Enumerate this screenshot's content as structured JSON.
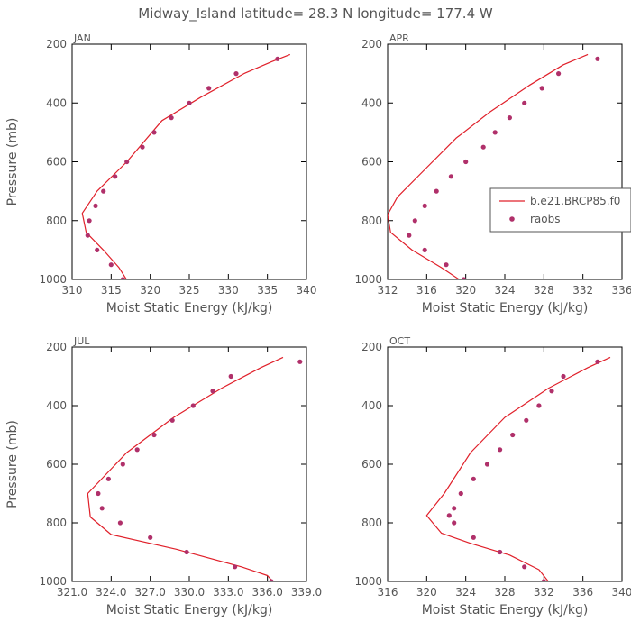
{
  "figure": {
    "title": "Midway_Island  latitude= 28.3 N longitude= 177.4 W"
  },
  "colors": {
    "model": "#e0202a",
    "obs": "#b0306a",
    "axis": "#000000",
    "text": "#555555"
  },
  "legend": {
    "entries": [
      "b.e21.BRCP85.f0",
      "raobs"
    ]
  },
  "chart_data": [
    {
      "type": "line",
      "panel": "JAN",
      "xlabel": "Moist Static Energy (kJ/kg)",
      "ylabel": "Pressure (mb)",
      "xlim": [
        310,
        340
      ],
      "ylim": [
        1000,
        200
      ],
      "xticks": [
        310,
        315,
        320,
        325,
        330,
        335,
        340
      ],
      "xticklabels": [
        "310",
        "315",
        "320",
        "325",
        "330",
        "335",
        "340"
      ],
      "yticks": [
        200,
        400,
        600,
        800,
        1000
      ],
      "series": [
        {
          "name": "b.e21.BRCP85.f0",
          "kind": "line",
          "x": [
            337.9,
            335.5,
            332.0,
            326.5,
            321.5,
            317.0,
            313.2,
            311.3,
            311.8,
            314.0,
            316.0,
            317.2
          ],
          "y": [
            235,
            260,
            300,
            380,
            460,
            600,
            700,
            775,
            840,
            900,
            960,
            1010
          ]
        },
        {
          "name": "raobs",
          "kind": "scatter",
          "x": [
            336.3,
            331.0,
            327.5,
            325.0,
            322.7,
            320.5,
            319.0,
            317.0,
            315.5,
            314.0,
            313.0,
            312.2,
            312.0,
            313.2,
            315.0,
            316.5
          ],
          "y": [
            250,
            300,
            350,
            400,
            450,
            500,
            550,
            600,
            650,
            700,
            750,
            800,
            850,
            900,
            950,
            1000
          ]
        }
      ]
    },
    {
      "type": "line",
      "panel": "APR",
      "xlabel": "Moist Static Energy (kJ/kg)",
      "ylabel": "",
      "xlim": [
        312,
        336
      ],
      "ylim": [
        1000,
        200
      ],
      "xticks": [
        312,
        316,
        320,
        324,
        328,
        332,
        336
      ],
      "xticklabels": [
        "312",
        "316",
        "320",
        "324",
        "328",
        "332",
        "336"
      ],
      "yticks": [
        200,
        400,
        600,
        800,
        1000
      ],
      "series": [
        {
          "name": "b.e21.BRCP85.f0",
          "kind": "line",
          "x": [
            332.5,
            330.0,
            326.5,
            322.5,
            319.0,
            316.0,
            313.0,
            312.0,
            312.3,
            314.5,
            317.5,
            320.0
          ],
          "y": [
            235,
            270,
            340,
            430,
            520,
            620,
            720,
            780,
            840,
            900,
            960,
            1015
          ]
        },
        {
          "name": "raobs",
          "kind": "scatter",
          "x": [
            333.5,
            329.5,
            327.8,
            326.0,
            324.5,
            323.0,
            321.8,
            320.0,
            318.5,
            317.0,
            315.8,
            314.8,
            314.2,
            315.8,
            318.0,
            319.8
          ],
          "y": [
            250,
            300,
            350,
            400,
            450,
            500,
            550,
            600,
            650,
            700,
            750,
            800,
            850,
            900,
            950,
            1000
          ]
        }
      ]
    },
    {
      "type": "line",
      "panel": "JUL",
      "xlabel": "Moist Static Energy (kJ/kg)",
      "ylabel": "Pressure (mb)",
      "xlim": [
        321,
        339
      ],
      "ylim": [
        1000,
        200
      ],
      "xticks": [
        321,
        324,
        327,
        330,
        333,
        336,
        339
      ],
      "xticklabels": [
        "321.0",
        "324.0",
        "327.0",
        "330.0",
        "333.0",
        "336.0",
        "339.0"
      ],
      "yticks": [
        200,
        400,
        600,
        800,
        1000
      ],
      "series": [
        {
          "name": "b.e21.BRCP85.f0",
          "kind": "line",
          "x": [
            337.2,
            335.5,
            332.5,
            328.8,
            325.2,
            322.2,
            322.4,
            324.0,
            329.0,
            334.0,
            336.0,
            336.7
          ],
          "y": [
            235,
            270,
            340,
            440,
            560,
            700,
            780,
            840,
            890,
            950,
            980,
            1015
          ]
        },
        {
          "name": "raobs",
          "kind": "scatter",
          "x": [
            338.5,
            333.2,
            331.8,
            330.3,
            328.7,
            327.3,
            326.0,
            324.9,
            323.8,
            323.0,
            323.3,
            324.7,
            327.0,
            329.8,
            333.5,
            336.3
          ],
          "y": [
            250,
            300,
            350,
            400,
            450,
            500,
            550,
            600,
            650,
            700,
            750,
            800,
            850,
            900,
            950,
            1000
          ]
        }
      ]
    },
    {
      "type": "line",
      "panel": "OCT",
      "xlabel": "Moist Static Energy (kJ/kg)",
      "ylabel": "",
      "xlim": [
        316,
        340
      ],
      "ylim": [
        1000,
        200
      ],
      "xticks": [
        316,
        320,
        324,
        328,
        332,
        336,
        340
      ],
      "xticklabels": [
        "316",
        "320",
        "324",
        "328",
        "332",
        "336",
        "340"
      ],
      "yticks": [
        200,
        400,
        600,
        800,
        1000
      ],
      "series": [
        {
          "name": "b.e21.BRCP85.f0",
          "kind": "line",
          "x": [
            338.8,
            336.5,
            332.5,
            328.0,
            324.5,
            321.8,
            320.0,
            321.5,
            324.5,
            328.5,
            331.5,
            332.7
          ],
          "y": [
            235,
            270,
            340,
            440,
            560,
            700,
            775,
            835,
            870,
            910,
            960,
            1010
          ]
        },
        {
          "name": "raobs",
          "kind": "scatter",
          "x": [
            337.5,
            334.0,
            332.8,
            331.5,
            330.2,
            328.8,
            327.5,
            326.2,
            324.8,
            323.5,
            322.8,
            322.3,
            322.8,
            324.8,
            327.5,
            330.0,
            332.0
          ],
          "y": [
            250,
            300,
            350,
            400,
            450,
            500,
            550,
            600,
            650,
            700,
            750,
            775,
            800,
            850,
            900,
            950,
            1000
          ]
        }
      ]
    }
  ]
}
